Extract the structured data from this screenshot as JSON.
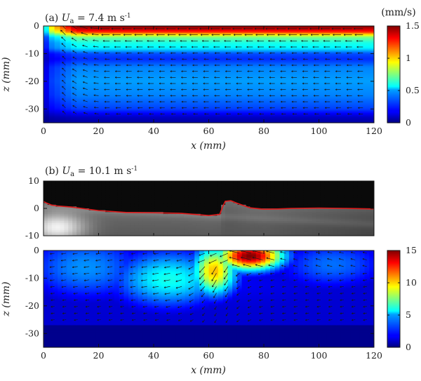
{
  "chart_data": [
    {
      "id": "a",
      "type": "heatmap",
      "title": "(a) Ua = 7.4 m s-1",
      "title_parts": {
        "prefix": "(a) ",
        "var": "U",
        "sub": "a",
        "value": " = 7.4 m s",
        "sup": "-1"
      },
      "xlabel": "x (mm)",
      "ylabel": "z (mm)",
      "xlim": [
        0,
        120
      ],
      "ylim": [
        -35,
        0
      ],
      "xticks": [
        0,
        20,
        40,
        60,
        80,
        100,
        120
      ],
      "yticks": [
        0,
        -10,
        -20,
        -30
      ],
      "colorbar": {
        "label": "(mm/s)",
        "range": [
          0,
          1.5
        ],
        "ticks": [
          0,
          0.5,
          1,
          1.5
        ],
        "tick_labels": [
          "0",
          "0.5",
          "1",
          "1.5"
        ],
        "colormap": "jet"
      },
      "field_description": "Velocity magnitude with overlaid quiver arrows pointing in -x direction; strong surface jet (~1.5 mm/s) in top 3 mm, moderate layer near z=-5, weaker interior ~0.5.",
      "profile_z": [
        0,
        -2,
        -4,
        -6,
        -8,
        -10,
        -12,
        -15,
        -20,
        -25,
        -30,
        -33,
        -35
      ],
      "profile_speed": [
        1.5,
        1.3,
        0.75,
        0.6,
        0.55,
        0.3,
        0.25,
        0.38,
        0.42,
        0.38,
        0.28,
        0.1,
        0.05
      ],
      "quiver": true
    },
    {
      "id": "b_image",
      "type": "heatmap",
      "title": "(b) Ua = 10.1 m s-1",
      "title_parts": {
        "prefix": "(b) ",
        "var": "U",
        "sub": "a",
        "value": " = 10.1 m s",
        "sup": "-1"
      },
      "xlim": [
        0,
        120
      ],
      "ylim": [
        -10,
        10
      ],
      "yticks": [
        10,
        0,
        -10
      ],
      "colormap": "gray",
      "surface_line_color": "#e01a1a",
      "surface_x": [
        0,
        1,
        3,
        5,
        10,
        20,
        30,
        40,
        50,
        55,
        60,
        64,
        65,
        66,
        68,
        70,
        75,
        80,
        85,
        90,
        100,
        110,
        120
      ],
      "surface_z": [
        2.5,
        2.0,
        1.2,
        0.9,
        0.5,
        -0.8,
        -1.5,
        -1.6,
        -1.8,
        -2.2,
        -2.6,
        -2.2,
        0.5,
        2.6,
        2.8,
        2.0,
        0.2,
        -0.3,
        -0.2,
        0.0,
        0.1,
        0.0,
        -0.2
      ]
    },
    {
      "id": "b_field",
      "type": "heatmap",
      "xlabel": "x (mm)",
      "ylabel": "z (mm)",
      "xlim": [
        0,
        120
      ],
      "ylim": [
        -35,
        0
      ],
      "xticks": [
        0,
        20,
        40,
        60,
        80,
        100,
        120
      ],
      "yticks": [
        0,
        -10,
        -20,
        -30
      ],
      "colorbar": {
        "range": [
          0,
          15
        ],
        "ticks": [
          0,
          5,
          10,
          15
        ],
        "tick_labels": [
          "0",
          "5",
          "10",
          "15"
        ],
        "colormap": "jet"
      },
      "field_description": "Velocity magnitude with quiver arrows; intense surface jet (~15) between x=55 and x=92 near the surface, diffusing downward; uniform low region below z=-27.",
      "hotspots": [
        {
          "x": 75,
          "z": -2,
          "sigma_x": 12,
          "sigma_z": 5,
          "peak": 15
        },
        {
          "x": 62,
          "z": -7,
          "sigma_x": 8,
          "sigma_z": 9,
          "peak": 10
        },
        {
          "x": 45,
          "z": -10,
          "sigma_x": 20,
          "sigma_z": 11,
          "peak": 5.5
        },
        {
          "x": 15,
          "z": -6,
          "sigma_x": 22,
          "sigma_z": 12,
          "peak": 4
        },
        {
          "x": 105,
          "z": -5,
          "sigma_x": 20,
          "sigma_z": 9,
          "peak": 3.5
        }
      ],
      "background_level": 1.2,
      "bottom_band_z": -27,
      "quiver": true
    }
  ]
}
